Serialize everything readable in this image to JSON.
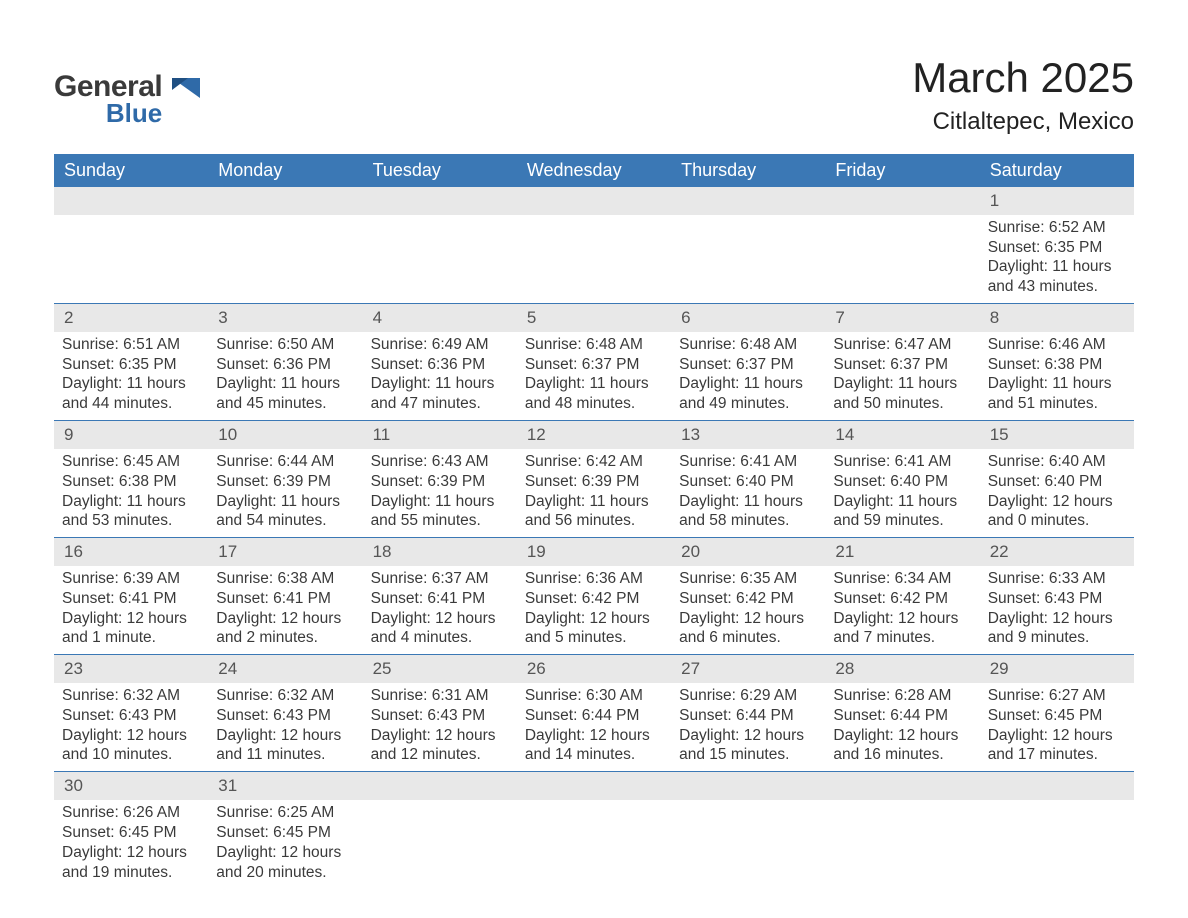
{
  "brand": {
    "word1": "General",
    "word2": "Blue",
    "accent_color": "#2f6aa8"
  },
  "title": "March 2025",
  "location": "Citlaltepec, Mexico",
  "colors": {
    "header_bg": "#3b78b5",
    "header_fg": "#ffffff",
    "daynum_bg": "#e8e8e8",
    "row_border": "#3b78b5",
    "text": "#3a3a3a",
    "page_bg": "#ffffff"
  },
  "typography": {
    "title_fontsize": 42,
    "location_fontsize": 24,
    "header_fontsize": 18,
    "cell_fontsize": 15.5
  },
  "weekdays": [
    "Sunday",
    "Monday",
    "Tuesday",
    "Wednesday",
    "Thursday",
    "Friday",
    "Saturday"
  ],
  "weeks": [
    [
      null,
      null,
      null,
      null,
      null,
      null,
      {
        "n": "1",
        "sunrise": "Sunrise: 6:52 AM",
        "sunset": "Sunset: 6:35 PM",
        "daylight": "Daylight: 11 hours and 43 minutes."
      }
    ],
    [
      {
        "n": "2",
        "sunrise": "Sunrise: 6:51 AM",
        "sunset": "Sunset: 6:35 PM",
        "daylight": "Daylight: 11 hours and 44 minutes."
      },
      {
        "n": "3",
        "sunrise": "Sunrise: 6:50 AM",
        "sunset": "Sunset: 6:36 PM",
        "daylight": "Daylight: 11 hours and 45 minutes."
      },
      {
        "n": "4",
        "sunrise": "Sunrise: 6:49 AM",
        "sunset": "Sunset: 6:36 PM",
        "daylight": "Daylight: 11 hours and 47 minutes."
      },
      {
        "n": "5",
        "sunrise": "Sunrise: 6:48 AM",
        "sunset": "Sunset: 6:37 PM",
        "daylight": "Daylight: 11 hours and 48 minutes."
      },
      {
        "n": "6",
        "sunrise": "Sunrise: 6:48 AM",
        "sunset": "Sunset: 6:37 PM",
        "daylight": "Daylight: 11 hours and 49 minutes."
      },
      {
        "n": "7",
        "sunrise": "Sunrise: 6:47 AM",
        "sunset": "Sunset: 6:37 PM",
        "daylight": "Daylight: 11 hours and 50 minutes."
      },
      {
        "n": "8",
        "sunrise": "Sunrise: 6:46 AM",
        "sunset": "Sunset: 6:38 PM",
        "daylight": "Daylight: 11 hours and 51 minutes."
      }
    ],
    [
      {
        "n": "9",
        "sunrise": "Sunrise: 6:45 AM",
        "sunset": "Sunset: 6:38 PM",
        "daylight": "Daylight: 11 hours and 53 minutes."
      },
      {
        "n": "10",
        "sunrise": "Sunrise: 6:44 AM",
        "sunset": "Sunset: 6:39 PM",
        "daylight": "Daylight: 11 hours and 54 minutes."
      },
      {
        "n": "11",
        "sunrise": "Sunrise: 6:43 AM",
        "sunset": "Sunset: 6:39 PM",
        "daylight": "Daylight: 11 hours and 55 minutes."
      },
      {
        "n": "12",
        "sunrise": "Sunrise: 6:42 AM",
        "sunset": "Sunset: 6:39 PM",
        "daylight": "Daylight: 11 hours and 56 minutes."
      },
      {
        "n": "13",
        "sunrise": "Sunrise: 6:41 AM",
        "sunset": "Sunset: 6:40 PM",
        "daylight": "Daylight: 11 hours and 58 minutes."
      },
      {
        "n": "14",
        "sunrise": "Sunrise: 6:41 AM",
        "sunset": "Sunset: 6:40 PM",
        "daylight": "Daylight: 11 hours and 59 minutes."
      },
      {
        "n": "15",
        "sunrise": "Sunrise: 6:40 AM",
        "sunset": "Sunset: 6:40 PM",
        "daylight": "Daylight: 12 hours and 0 minutes."
      }
    ],
    [
      {
        "n": "16",
        "sunrise": "Sunrise: 6:39 AM",
        "sunset": "Sunset: 6:41 PM",
        "daylight": "Daylight: 12 hours and 1 minute."
      },
      {
        "n": "17",
        "sunrise": "Sunrise: 6:38 AM",
        "sunset": "Sunset: 6:41 PM",
        "daylight": "Daylight: 12 hours and 2 minutes."
      },
      {
        "n": "18",
        "sunrise": "Sunrise: 6:37 AM",
        "sunset": "Sunset: 6:41 PM",
        "daylight": "Daylight: 12 hours and 4 minutes."
      },
      {
        "n": "19",
        "sunrise": "Sunrise: 6:36 AM",
        "sunset": "Sunset: 6:42 PM",
        "daylight": "Daylight: 12 hours and 5 minutes."
      },
      {
        "n": "20",
        "sunrise": "Sunrise: 6:35 AM",
        "sunset": "Sunset: 6:42 PM",
        "daylight": "Daylight: 12 hours and 6 minutes."
      },
      {
        "n": "21",
        "sunrise": "Sunrise: 6:34 AM",
        "sunset": "Sunset: 6:42 PM",
        "daylight": "Daylight: 12 hours and 7 minutes."
      },
      {
        "n": "22",
        "sunrise": "Sunrise: 6:33 AM",
        "sunset": "Sunset: 6:43 PM",
        "daylight": "Daylight: 12 hours and 9 minutes."
      }
    ],
    [
      {
        "n": "23",
        "sunrise": "Sunrise: 6:32 AM",
        "sunset": "Sunset: 6:43 PM",
        "daylight": "Daylight: 12 hours and 10 minutes."
      },
      {
        "n": "24",
        "sunrise": "Sunrise: 6:32 AM",
        "sunset": "Sunset: 6:43 PM",
        "daylight": "Daylight: 12 hours and 11 minutes."
      },
      {
        "n": "25",
        "sunrise": "Sunrise: 6:31 AM",
        "sunset": "Sunset: 6:43 PM",
        "daylight": "Daylight: 12 hours and 12 minutes."
      },
      {
        "n": "26",
        "sunrise": "Sunrise: 6:30 AM",
        "sunset": "Sunset: 6:44 PM",
        "daylight": "Daylight: 12 hours and 14 minutes."
      },
      {
        "n": "27",
        "sunrise": "Sunrise: 6:29 AM",
        "sunset": "Sunset: 6:44 PM",
        "daylight": "Daylight: 12 hours and 15 minutes."
      },
      {
        "n": "28",
        "sunrise": "Sunrise: 6:28 AM",
        "sunset": "Sunset: 6:44 PM",
        "daylight": "Daylight: 12 hours and 16 minutes."
      },
      {
        "n": "29",
        "sunrise": "Sunrise: 6:27 AM",
        "sunset": "Sunset: 6:45 PM",
        "daylight": "Daylight: 12 hours and 17 minutes."
      }
    ],
    [
      {
        "n": "30",
        "sunrise": "Sunrise: 6:26 AM",
        "sunset": "Sunset: 6:45 PM",
        "daylight": "Daylight: 12 hours and 19 minutes."
      },
      {
        "n": "31",
        "sunrise": "Sunrise: 6:25 AM",
        "sunset": "Sunset: 6:45 PM",
        "daylight": "Daylight: 12 hours and 20 minutes."
      },
      null,
      null,
      null,
      null,
      null
    ]
  ]
}
